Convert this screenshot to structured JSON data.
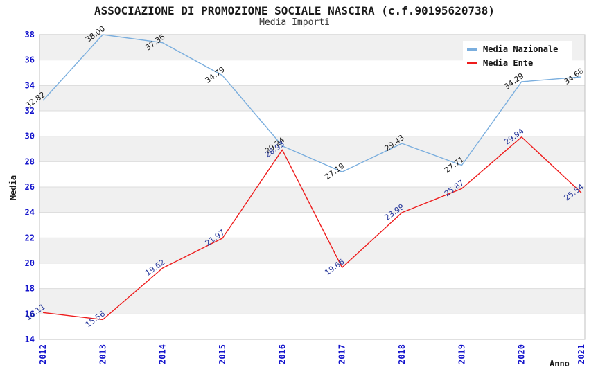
{
  "legend": {
    "items": [
      {
        "label": "Media Nazionale",
        "color": "#7aaede"
      },
      {
        "label": "Media Ente",
        "color": "#ee1c1c"
      }
    ]
  },
  "axes": {
    "y_ticks": [
      38,
      36,
      34,
      32,
      30,
      28,
      26,
      24,
      22,
      20,
      18,
      16,
      14
    ],
    "tick_color": "#1414cc"
  },
  "colors": {
    "band_gray": "#f0f0f0",
    "band_white": "#ffffff",
    "gridline": "#dcdcdc",
    "plot_border": "#c0c0c0",
    "background": "#ffffff"
  },
  "chart_data": {
    "type": "line",
    "title": "ASSOCIAZIONE DI PROMOZIONE SOCIALE NASCIRA (c.f.90195620738)",
    "subtitle": "Media Importi",
    "x": [
      "2012",
      "2013",
      "2014",
      "2015",
      "2016",
      "2017",
      "2018",
      "2019",
      "2020",
      "2021"
    ],
    "series": [
      {
        "name": "Media Nazionale",
        "color": "#7aaede",
        "label_color": "#1a1a1a",
        "values": [
          32.82,
          38.0,
          37.36,
          34.79,
          29.24,
          27.19,
          29.43,
          27.71,
          34.29,
          34.68
        ]
      },
      {
        "name": "Media Ente",
        "color": "#ee1c1c",
        "label_color": "#26379b",
        "values": [
          16.11,
          15.56,
          19.62,
          21.97,
          28.93,
          19.66,
          23.99,
          25.87,
          29.94,
          25.54
        ]
      }
    ],
    "xlabel": "Anno",
    "ylabel": "Media",
    "ylim": [
      14,
      38
    ],
    "ytick_step": 2,
    "grid": "alternating horizontal gray/white bands every 2 units with light gridlines",
    "legend_position": "top-right",
    "point_labels": "each point labeled with value to 2 decimals, rotated ~-36deg"
  }
}
